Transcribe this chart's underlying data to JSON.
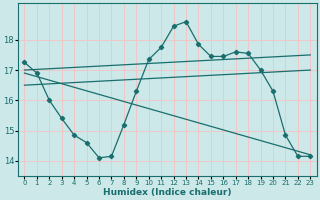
{
  "xlabel": "Humidex (Indice chaleur)",
  "bg_color": "#cce8e8",
  "grid_color": "#f0c8c8",
  "line_color": "#1a6e6e",
  "xlim": [
    -0.5,
    23.5
  ],
  "ylim": [
    13.5,
    19.2
  ],
  "yticks": [
    14,
    15,
    16,
    17,
    18
  ],
  "xticks": [
    0,
    1,
    2,
    3,
    4,
    5,
    6,
    7,
    8,
    9,
    10,
    11,
    12,
    13,
    14,
    15,
    16,
    17,
    18,
    19,
    20,
    21,
    22,
    23
  ],
  "series1_x": [
    0,
    1,
    2,
    3,
    4,
    5,
    6,
    7,
    8,
    9,
    10,
    11,
    12,
    13,
    14,
    15,
    16,
    17,
    18,
    19,
    20,
    21,
    22,
    23
  ],
  "series1_y": [
    17.25,
    16.9,
    16.0,
    15.4,
    14.85,
    14.6,
    14.1,
    14.15,
    15.2,
    16.3,
    17.35,
    17.75,
    18.45,
    18.6,
    17.85,
    17.45,
    17.45,
    17.6,
    17.55,
    17.0,
    16.3,
    14.85,
    14.15,
    14.15
  ],
  "series2_x": [
    0,
    23
  ],
  "series2_y": [
    17.0,
    17.5
  ],
  "series3_x": [
    0,
    23
  ],
  "series3_y": [
    16.5,
    17.0
  ],
  "series4_x": [
    0,
    23
  ],
  "series4_y": [
    16.9,
    14.2
  ]
}
